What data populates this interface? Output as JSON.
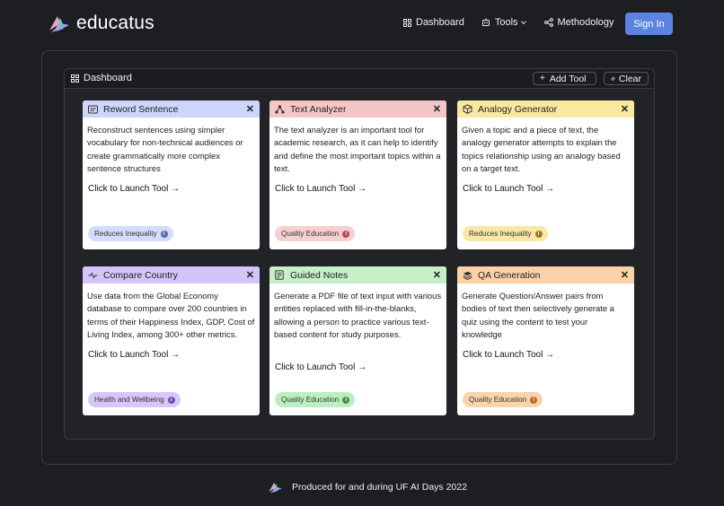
{
  "brand": {
    "name": "educatus",
    "logo_icon": "bird-logo-icon"
  },
  "nav": {
    "dashboard": "Dashboard",
    "tools": "Tools",
    "methodology": "Methodology",
    "signin": "Sign In"
  },
  "panel": {
    "title": "Dashboard",
    "add_tool": "Add Tool",
    "clear": "Clear"
  },
  "cards": [
    {
      "title": "Reword Sentence",
      "icon": "textbox-icon",
      "color": "#cdd6fa",
      "description": "Reconstruct sentences using simpler vocabulary for non-technical audiences or create grammatically more complex sentence structures",
      "launch": "Click to Launch Tool →",
      "badge": "Reduces Inequality",
      "badge_color": "#d3dcfa",
      "badge_info_color": "#5b6bb5"
    },
    {
      "title": "Text Analyzer",
      "icon": "nodes-icon",
      "color": "#f5c6c8",
      "description": "The text analyzer is an important tool for academic research, as it can help to identify and define the most important topics within a text.",
      "launch": "Click to Launch Tool →",
      "badge": "Quality Education",
      "badge_color": "#f6cfd1",
      "badge_info_color": "#b5484d"
    },
    {
      "title": "Analogy Generator",
      "icon": "cube-icon",
      "color": "#fae8a0",
      "description": "Given a topic and a piece of text, the analogy generator attempts to explain the topics relationship using an analogy based on a target text.",
      "launch": "Click to Launch Tool →",
      "badge": "Reduces Inequality",
      "badge_color": "#fae7a5",
      "badge_info_color": "#9a7a1e"
    },
    {
      "title": "Compare Country",
      "icon": "compare-icon",
      "color": "#d4c4fa",
      "description": "Use data from the Global Economy database to compare over 200 countries in terms of their Happiness Index, GDP, Cost of Living Index, among 300+ other metrics.",
      "launch": "Click to Launch Tool →",
      "badge": "Health and Wellbeing",
      "badge_color": "#d6c6fa",
      "badge_info_color": "#6a4fb5"
    },
    {
      "title": "Guided Notes",
      "icon": "notes-icon",
      "color": "#c6f0c8",
      "description": "Generate a PDF file of text input with various entities replaced with fill-in-the-blanks, allowing a person to practice various text-based content for study purposes.",
      "launch": "Click to Launch Tool →",
      "badge": "Quality Education",
      "badge_color": "#bdeec0",
      "badge_info_color": "#3f8e46"
    },
    {
      "title": "QA Generation",
      "icon": "stack-icon",
      "color": "#f9d2a8",
      "description": "Generate Question/Answer pairs from bodies of text then selectively generate a quiz using the content to test your knowledge",
      "launch": "Click to Launch Tool →",
      "badge": "Quality Education",
      "badge_color": "#f8d3ac",
      "badge_info_color": "#b26d2c"
    }
  ],
  "footer": {
    "text": "Produced for and during UF AI Days 2022"
  }
}
